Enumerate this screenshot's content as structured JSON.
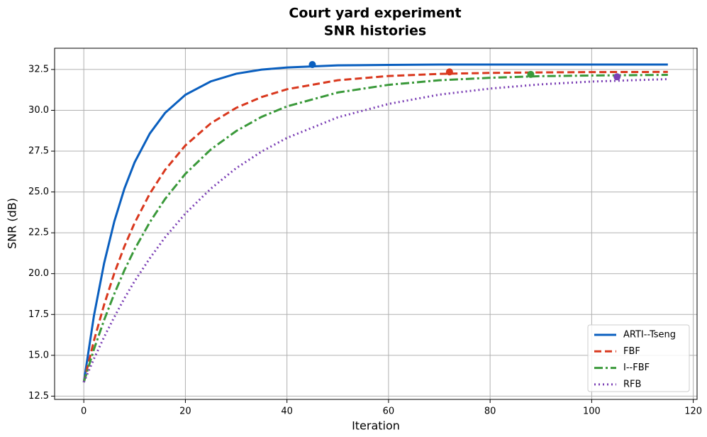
{
  "chart_data": {
    "type": "line",
    "title": "Court yard experiment",
    "subtitle": "SNR histories",
    "x_label": "Iteration",
    "y_label": "SNR (dB)",
    "x": [
      0,
      2,
      4,
      6,
      8,
      10,
      13,
      16,
      20,
      25,
      30,
      35,
      40,
      50,
      60,
      70,
      80,
      90,
      100,
      115
    ],
    "series": [
      {
        "name": "ARTI--Tseng",
        "color": "#0a5fbf",
        "dash": "solid",
        "values": [
          13.35,
          17.43,
          20.64,
          23.19,
          25.21,
          26.81,
          28.58,
          29.84,
          30.95,
          31.77,
          32.24,
          32.49,
          32.62,
          32.75,
          32.78,
          32.8,
          32.8,
          32.8,
          32.8,
          32.8
        ],
        "marker": {
          "x": 45,
          "y": 32.8
        }
      },
      {
        "name": "FBF",
        "color": "#d9381e",
        "dash": "dashed",
        "values": [
          13.35,
          15.9,
          18.1,
          20.02,
          21.67,
          23.1,
          24.9,
          26.35,
          27.85,
          29.2,
          30.15,
          30.81,
          31.29,
          31.84,
          32.1,
          32.23,
          32.29,
          32.32,
          32.34,
          32.35
        ],
        "marker": {
          "x": 72,
          "y": 32.35
        }
      },
      {
        "name": "I--FBF",
        "color": "#3a993a",
        "dash": "dashdot",
        "values": [
          13.35,
          15.37,
          17.16,
          18.76,
          20.21,
          21.49,
          23.15,
          24.57,
          26.11,
          27.6,
          28.73,
          29.6,
          30.24,
          31.09,
          31.56,
          31.84,
          31.99,
          32.09,
          32.13,
          32.17
        ],
        "marker": {
          "x": 88,
          "y": 32.2
        }
      },
      {
        "name": "RFB",
        "color": "#7b3fb5",
        "dash": "dotted",
        "values": [
          13.35,
          14.79,
          16.12,
          17.34,
          18.49,
          19.54,
          20.94,
          22.22,
          23.68,
          25.2,
          26.46,
          27.47,
          28.31,
          29.57,
          30.39,
          30.96,
          31.33,
          31.59,
          31.76,
          31.91
        ],
        "marker": {
          "x": 105,
          "y": 32.05
        }
      }
    ],
    "xlim": [
      -5.75,
      120.75
    ],
    "ylim": [
      12.3,
      33.8
    ],
    "xticks": [
      0,
      20,
      40,
      60,
      80,
      100,
      120
    ],
    "yticks": [
      12.5,
      {
        "value": 15,
        "label": "15.0"
      },
      17.5,
      {
        "value": 20,
        "label": "20.0"
      },
      22.5,
      {
        "value": 25,
        "label": "25.0"
      },
      27.5,
      {
        "value": 30,
        "label": "30.0"
      },
      32.5
    ],
    "grid": true,
    "legend": "lower right"
  }
}
